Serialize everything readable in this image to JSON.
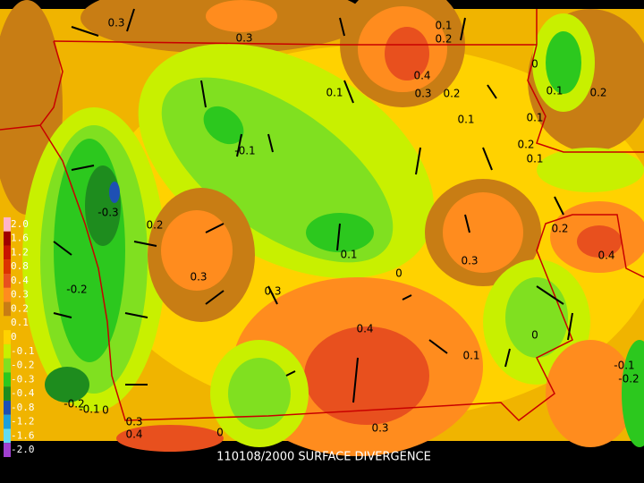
{
  "caption": "110108/2000 SURFACE DIVERGENCE",
  "colorbar": [
    {
      "label": "2.0",
      "color": "#ffb4c8"
    },
    {
      "label": "1.6",
      "color": "#a00000"
    },
    {
      "label": "1.2",
      "color": "#c81400"
    },
    {
      "label": "0.8",
      "color": "#dc3200"
    },
    {
      "label": "0.4",
      "color": "#e8501e"
    },
    {
      "label": "0.3",
      "color": "#ff8c1e"
    },
    {
      "label": "0.2",
      "color": "#c87d14"
    },
    {
      "label": "0.1",
      "color": "#f0b400"
    },
    {
      "label": "0",
      "color": "#ffd200"
    },
    {
      "label": "-0.1",
      "color": "#c8f000"
    },
    {
      "label": "-0.2",
      "color": "#80e020"
    },
    {
      "label": "-0.3",
      "color": "#2cc81e"
    },
    {
      "label": "-0.4",
      "color": "#1e8c1e"
    },
    {
      "label": "-0.8",
      "color": "#1e50b4"
    },
    {
      "label": "-1.2",
      "color": "#1ea0dc"
    },
    {
      "label": "-1.6",
      "color": "#64dcf0"
    },
    {
      "label": "-2.0",
      "color": "#a040d0"
    }
  ],
  "contour_labels": [
    "0.3",
    "0.3",
    "0.1",
    "0.2",
    "0.4",
    "0.3",
    "0.2",
    "0.1",
    "0.1",
    "0",
    "0.1",
    "0.2",
    "0.1",
    "0.2",
    "0.1",
    "-0.1",
    "-0.3",
    "0.2",
    "0.3",
    "0.3",
    "0.1",
    "0",
    "0.3",
    "0.2",
    "0.4",
    "-0.2",
    "0.4",
    "0",
    "0.1",
    "-0.1",
    "-0.2",
    "-0.2",
    "-0.1",
    "0",
    "0.3",
    "0.4",
    "0.3",
    "0"
  ]
}
